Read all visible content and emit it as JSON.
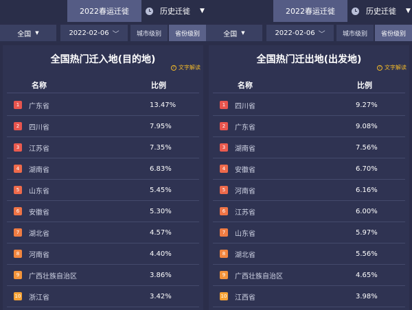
{
  "panels": [
    {
      "tab_active": "2022春运迁徙",
      "tab_history": "历史迁徙",
      "region": "全国",
      "date": "2022-02-06",
      "city_level": "城市级别",
      "province_level": "省份级别",
      "title": "全国热门迁入地(目的地)",
      "explain": "文字解读",
      "col_name": "名称",
      "col_ratio": "比例",
      "rows": [
        {
          "rank": "1",
          "name": "广东省",
          "pct": "13.47%"
        },
        {
          "rank": "2",
          "name": "四川省",
          "pct": "7.95%"
        },
        {
          "rank": "3",
          "name": "江苏省",
          "pct": "7.35%"
        },
        {
          "rank": "4",
          "name": "湖南省",
          "pct": "6.83%"
        },
        {
          "rank": "5",
          "name": "山东省",
          "pct": "5.45%"
        },
        {
          "rank": "6",
          "name": "安徽省",
          "pct": "5.30%"
        },
        {
          "rank": "7",
          "name": "湖北省",
          "pct": "4.57%"
        },
        {
          "rank": "8",
          "name": "河南省",
          "pct": "4.40%"
        },
        {
          "rank": "9",
          "name": "广西壮族自治区",
          "pct": "3.86%"
        },
        {
          "rank": "10",
          "name": "浙江省",
          "pct": "3.42%"
        }
      ]
    },
    {
      "tab_active": "2022春运迁徙",
      "tab_history": "历史迁徙",
      "region": "全国",
      "date": "2022-02-06",
      "city_level": "城市级别",
      "province_level": "省份级别",
      "title": "全国热门迁出地(出发地)",
      "explain": "文字解读",
      "col_name": "名称",
      "col_ratio": "比例",
      "rows": [
        {
          "rank": "1",
          "name": "四川省",
          "pct": "9.27%"
        },
        {
          "rank": "2",
          "name": "广东省",
          "pct": "9.08%"
        },
        {
          "rank": "3",
          "name": "湖南省",
          "pct": "7.56%"
        },
        {
          "rank": "4",
          "name": "安徽省",
          "pct": "6.70%"
        },
        {
          "rank": "5",
          "name": "河南省",
          "pct": "6.16%"
        },
        {
          "rank": "6",
          "name": "江苏省",
          "pct": "6.00%"
        },
        {
          "rank": "7",
          "name": "山东省",
          "pct": "5.97%"
        },
        {
          "rank": "8",
          "name": "湖北省",
          "pct": "5.56%"
        },
        {
          "rank": "9",
          "name": "广西壮族自治区",
          "pct": "4.65%"
        },
        {
          "rank": "10",
          "name": "江西省",
          "pct": "3.98%"
        }
      ]
    }
  ],
  "badge_colors": [
    "#e8554e",
    "#e8554e",
    "#ea5b4f",
    "#ee6a4b",
    "#ee6a4b",
    "#ef7446",
    "#ef7c43",
    "#f1863f",
    "#f3943a",
    "#f5a235"
  ],
  "icons": {
    "history": "clock-icon",
    "dropdown": "caret-down-icon",
    "date": "chevron-down-icon",
    "explain": "question-circle-icon"
  },
  "accent": "#f0b829"
}
